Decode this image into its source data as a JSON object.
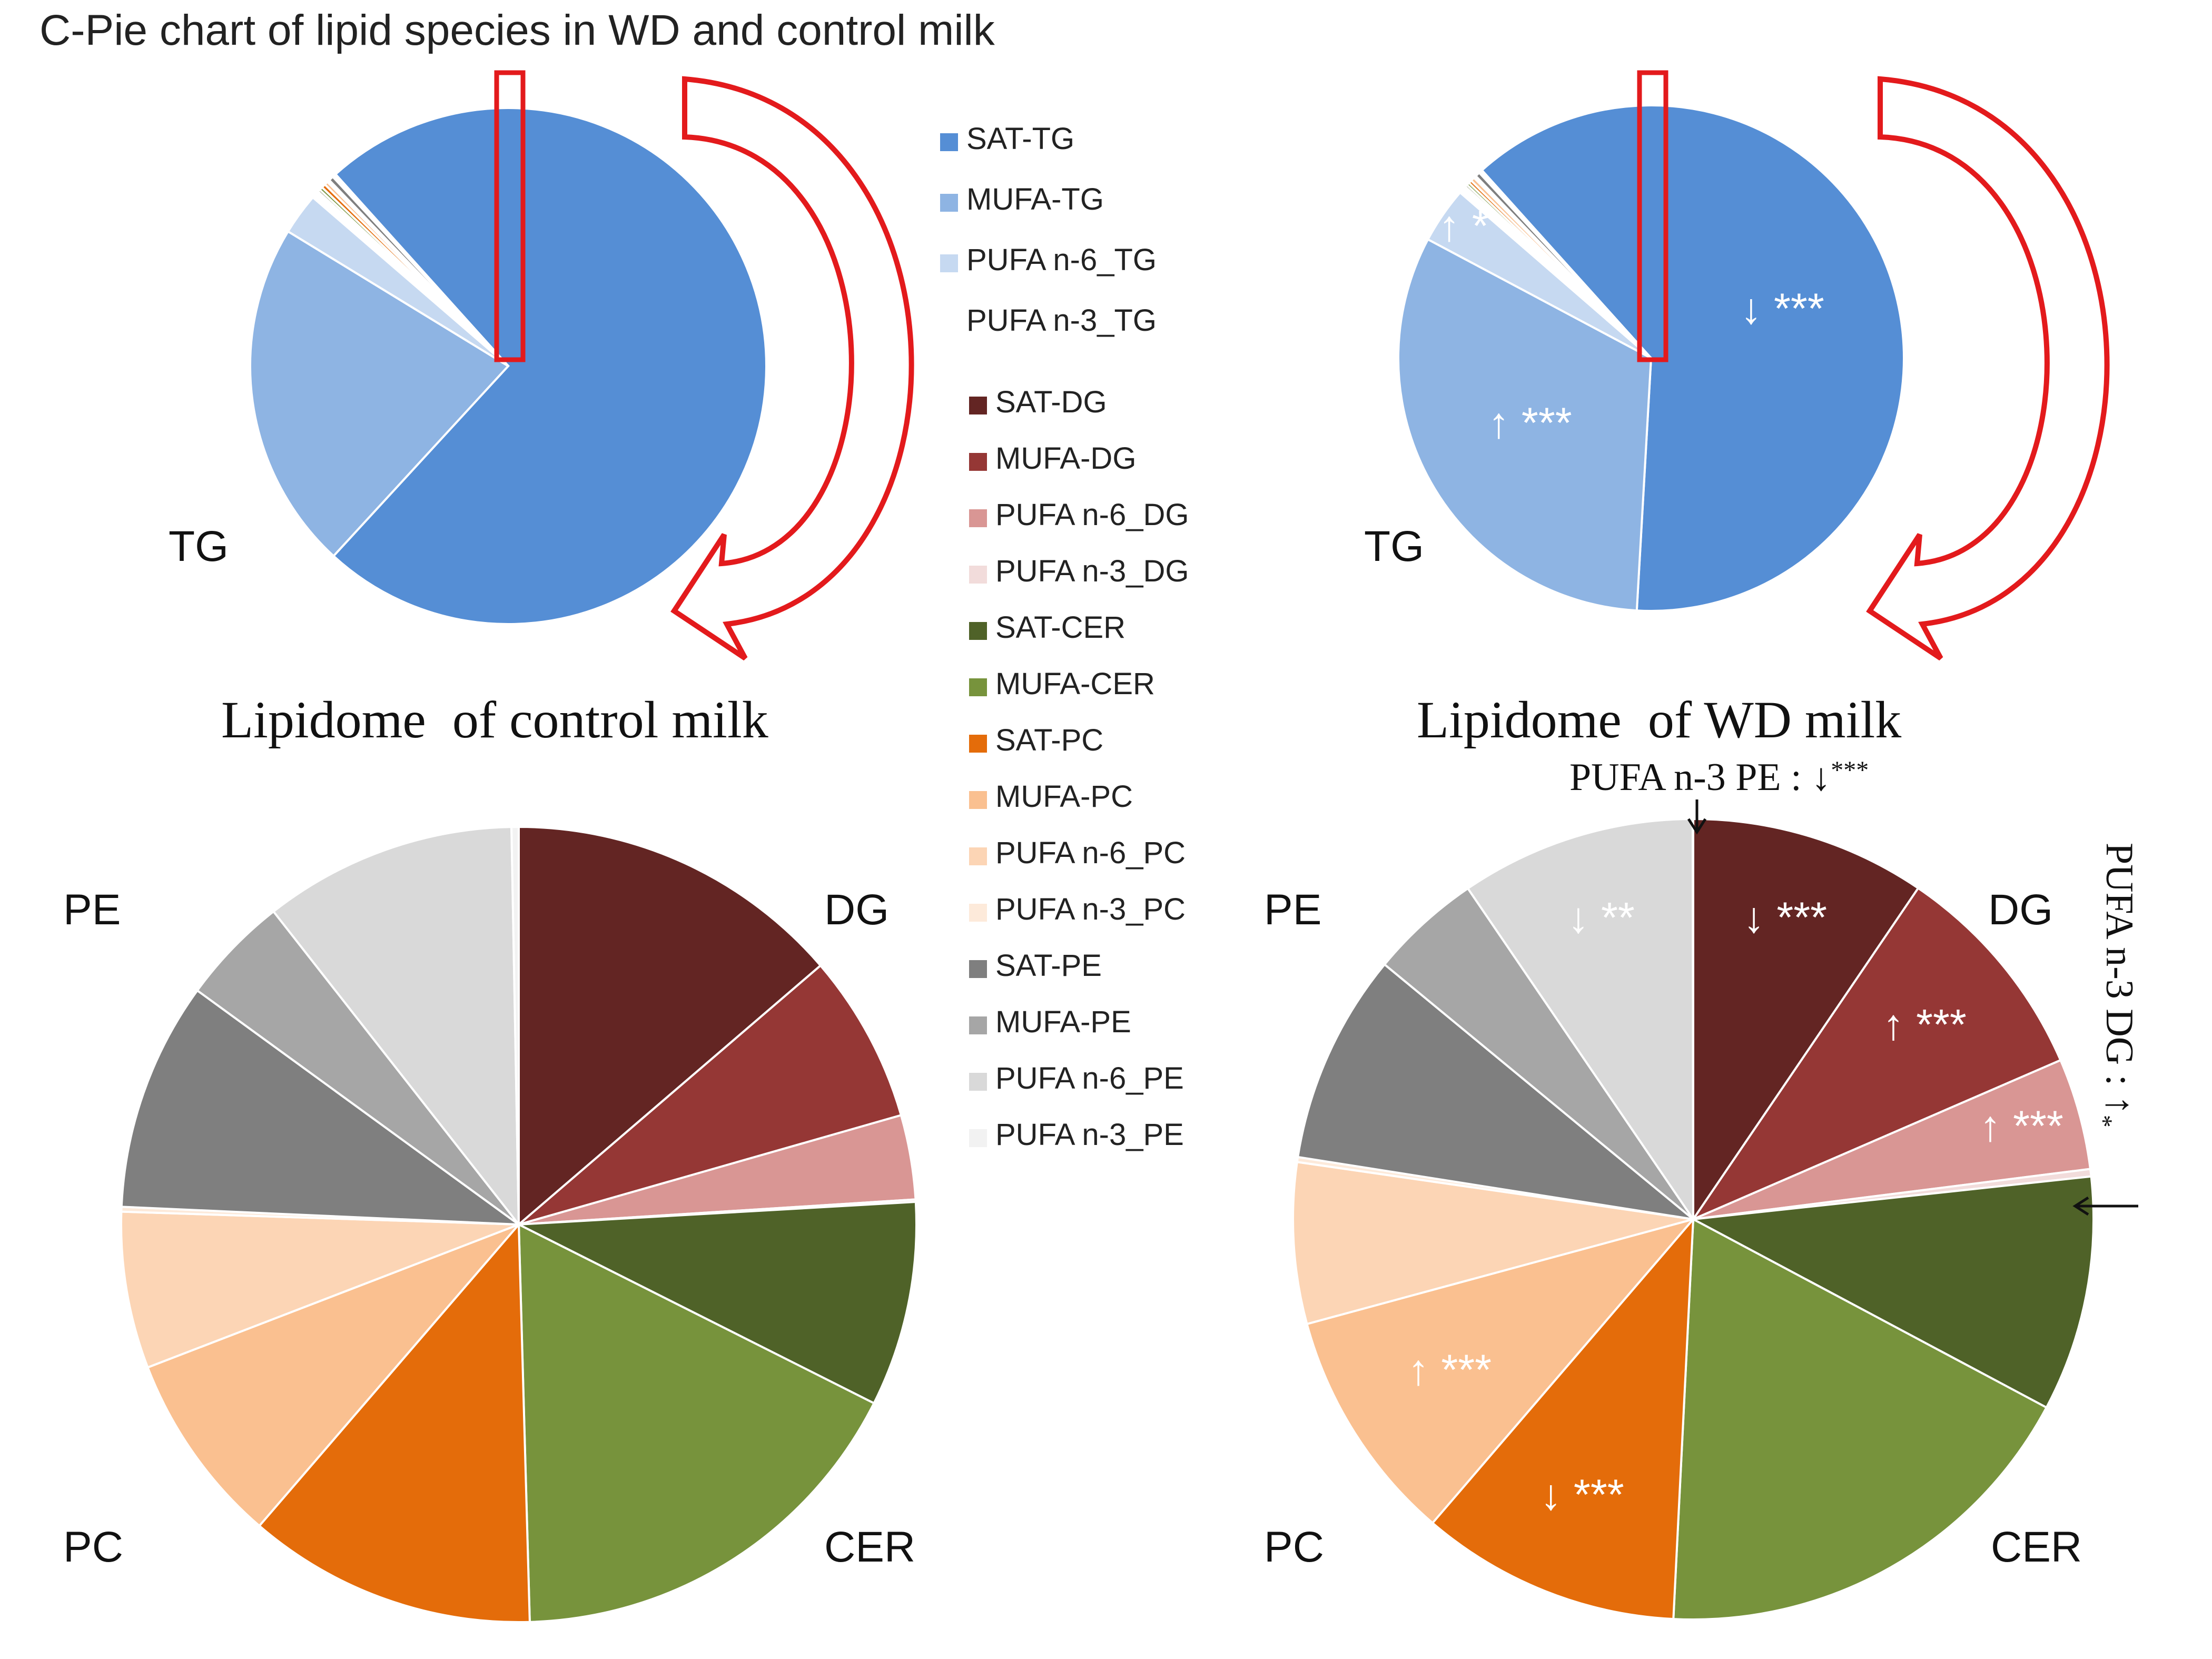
{
  "figure_title": "C-Pie chart of lipid species in WD and control milk",
  "colors": {
    "SAT-TG": "#558ed5",
    "MUFA-TG": "#8eb4e3",
    "PUFA n-6_TG": "#c6d9f1",
    "PUFA n-3_TG": "#ffffff",
    "SAT-DG": "#632523",
    "MUFA-DG": "#953735",
    "PUFA n-6_DG": "#d99694",
    "PUFA n-3_DG": "#f2dcdb",
    "SAT-CER": "#4f6228",
    "MUFA-CER": "#77933c",
    "SAT-PC": "#e46c0a",
    "MUFA-PC": "#fac090",
    "PUFA n-6_PC": "#fcd5b5",
    "PUFA n-3_PC": "#fdeada",
    "SAT-PE": "#7f7f7f",
    "MUFA-PE": "#a6a6a6",
    "PUFA n-6_PE": "#d9d9d9",
    "PUFA n-3_PE": "#f2f2f2",
    "highlight": "#e31a1c"
  },
  "legend": [
    "SAT-TG",
    "MUFA-TG",
    "PUFA n-6_TG",
    "PUFA n-3_TG",
    "SAT-DG",
    "MUFA-DG",
    "PUFA n-6_DG",
    "PUFA n-3_DG",
    "SAT-CER",
    "MUFA-CER",
    "SAT-PC",
    "MUFA-PC",
    "PUFA n-6_PC",
    "PUFA n-3_PC",
    "SAT-PE",
    "MUFA-PE",
    "PUFA n-6_PE",
    "PUFA n-3_PE"
  ],
  "chart_data": [
    {
      "type": "pie",
      "name": "control-tg",
      "group_label": "TG",
      "labels": [
        "SAT-TG",
        "MUFA-TG",
        "PUFA n-6_TG",
        "PUFA n-3_TG",
        "SAT-DG",
        "MUFA-DG",
        "PUFA n-6_DG",
        "PUFA n-3_DG",
        "SAT-CER",
        "MUFA-CER",
        "SAT-PC",
        "MUFA-PC",
        "PUFA n-6_PC",
        "PUFA n-3_PC",
        "SAT-PE",
        "MUFA-PE",
        "PUFA n-6_PE",
        "PUFA n-3_PE"
      ],
      "values": [
        73.5,
        21.9,
        2.6,
        0.25,
        0.12,
        0.08,
        0.03,
        0.01,
        0.15,
        0.2,
        0.25,
        0.22,
        0.1,
        0.06,
        0.3,
        0.1,
        0.1,
        0.03
      ],
      "annotations": []
    },
    {
      "type": "pie",
      "name": "wd-tg",
      "group_label": "TG",
      "labels": [
        "SAT-TG",
        "MUFA-TG",
        "PUFA n-6_TG",
        "PUFA n-3_TG",
        "SAT-DG",
        "MUFA-DG",
        "PUFA n-6_DG",
        "PUFA n-3_DG",
        "SAT-CER",
        "MUFA-CER",
        "SAT-PC",
        "MUFA-PC",
        "PUFA n-6_PC",
        "PUFA n-3_PC",
        "SAT-PE",
        "MUFA-PE",
        "PUFA n-6_PE",
        "PUFA n-3_PE"
      ],
      "values": [
        62.8,
        32.0,
        3.6,
        0.25,
        0.1,
        0.1,
        0.04,
        0.01,
        0.15,
        0.18,
        0.2,
        0.25,
        0.1,
        0.06,
        0.3,
        0.1,
        0.1,
        0.03
      ],
      "annotations": [
        {
          "segment": "MUFA-TG",
          "arrow": "↑",
          "stars": "***"
        },
        {
          "segment": "PUFA n-6_TG",
          "arrow": "↑",
          "stars": "*"
        },
        {
          "segment": "SAT-TG",
          "arrow": "↓",
          "stars": "***"
        }
      ]
    },
    {
      "type": "pie",
      "name": "control-minor",
      "title": "Lipidome  of control milk",
      "labels": [
        "SAT-DG",
        "MUFA-DG",
        "PUFA n-6_DG",
        "PUFA n-3_DG",
        "SAT-CER",
        "MUFA-CER",
        "SAT-PC",
        "MUFA-PC",
        "PUFA n-6_PC",
        "PUFA n-3_PC",
        "SAT-PE",
        "MUFA-PE",
        "PUFA n-6_PE",
        "PUFA n-3_PE"
      ],
      "values": [
        14.0,
        7.0,
        3.5,
        0.1,
        8.5,
        17.5,
        12.0,
        8.0,
        6.5,
        0.2,
        9.5,
        4.5,
        10.5,
        0.3
      ],
      "group_labels": [
        "PE",
        "DG",
        "PC",
        "CER"
      ],
      "annotations": []
    },
    {
      "type": "pie",
      "name": "wd-minor",
      "title": "Lipidome  of WD milk",
      "labels": [
        "SAT-DG",
        "MUFA-DG",
        "PUFA n-6_DG",
        "PUFA n-3_DG",
        "SAT-CER",
        "MUFA-CER",
        "SAT-PC",
        "MUFA-PC",
        "PUFA n-6_PC",
        "PUFA n-3_PC",
        "SAT-PE",
        "MUFA-PE",
        "PUFA n-6_PE",
        "PUFA n-3_PE"
      ],
      "values": [
        9.5,
        9.0,
        4.5,
        0.3,
        9.5,
        18.0,
        10.5,
        9.5,
        6.5,
        0.2,
        8.5,
        4.5,
        9.5,
        0.02
      ],
      "group_labels": [
        "PE",
        "DG",
        "PC",
        "CER"
      ],
      "annotations": [
        {
          "segment": "SAT-DG",
          "arrow": "↓",
          "stars": "***"
        },
        {
          "segment": "MUFA-DG",
          "arrow": "↑",
          "stars": "***"
        },
        {
          "segment": "PUFA n-6_DG",
          "arrow": "↑",
          "stars": "***"
        },
        {
          "segment": "SAT-PC",
          "arrow": "↓",
          "stars": "***"
        },
        {
          "segment": "MUFA-PC",
          "arrow": "↑",
          "stars": "***"
        },
        {
          "segment": "PUFA n-6_PE",
          "arrow": "↓",
          "stars": "**"
        }
      ],
      "callouts": {
        "pufa_n3_pe": {
          "text": "PUFA n-3 PE : ",
          "arrow": "↓",
          "stars": "***"
        },
        "pufa_n3_dg": {
          "text": "PUFA n-3 DG : ",
          "arrow": "↑",
          "stars": "*"
        }
      }
    }
  ]
}
